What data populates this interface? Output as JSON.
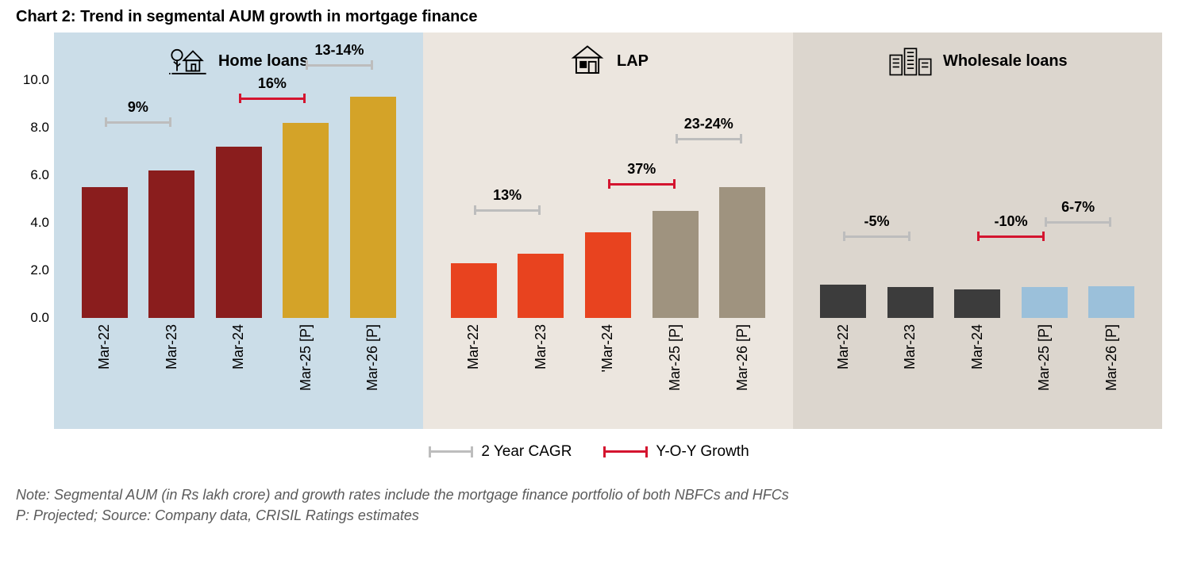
{
  "title": "Chart 2: Trend in segmental AUM growth in mortgage finance",
  "y_axis": {
    "min": 0.0,
    "max": 10.0,
    "step": 2.0,
    "ticks": [
      "0.0",
      "2.0",
      "4.0",
      "6.0",
      "8.0",
      "10.0"
    ]
  },
  "panels": [
    {
      "name": "Home loans",
      "bg": "#cbdde8",
      "icon": "home-tree",
      "categories": [
        "Mar-22",
        "Mar-23",
        "Mar-24",
        "Mar-25 [P]",
        "Mar-26 [P]"
      ],
      "values": [
        5.5,
        6.2,
        7.2,
        8.2,
        9.3
      ],
      "bar_colors": [
        "#8a1d1d",
        "#8a1d1d",
        "#8a1d1d",
        "#d4a328",
        "#d4a328"
      ],
      "brackets": [
        {
          "label": "9%",
          "type": "cagr",
          "from": 0,
          "to": 1,
          "y": 8.2
        },
        {
          "label": "16%",
          "type": "yoy",
          "from": 2,
          "to": 3,
          "y": 9.2
        },
        {
          "label": "13-14%",
          "type": "cagr",
          "from": 3,
          "to": 4,
          "y": 10.6
        }
      ]
    },
    {
      "name": "LAP",
      "bg": "#ece6df",
      "icon": "lap-house",
      "categories": [
        "Mar-22",
        "Mar-23",
        "'Mar-24",
        "Mar-25 [P]",
        "Mar-26 [P]"
      ],
      "values": [
        2.3,
        2.7,
        3.6,
        4.5,
        5.5
      ],
      "bar_colors": [
        "#e8431f",
        "#e8431f",
        "#e8431f",
        "#9f937f",
        "#9f937f"
      ],
      "brackets": [
        {
          "label": "13%",
          "type": "cagr",
          "from": 0,
          "to": 1,
          "y": 4.5
        },
        {
          "label": "37%",
          "type": "yoy",
          "from": 2,
          "to": 3,
          "y": 5.6
        },
        {
          "label": "23-24%",
          "type": "cagr",
          "from": 3,
          "to": 4,
          "y": 7.5
        }
      ]
    },
    {
      "name": "Wholesale loans",
      "bg": "#dcd6ce",
      "icon": "buildings",
      "categories": [
        "Mar-22",
        "Mar-23",
        "Mar-24",
        "Mar-25 [P]",
        "Mar-26 [P]"
      ],
      "values": [
        1.4,
        1.3,
        1.2,
        1.3,
        1.35
      ],
      "bar_colors": [
        "#3c3c3c",
        "#3c3c3c",
        "#3c3c3c",
        "#9bc0da",
        "#9bc0da"
      ],
      "brackets": [
        {
          "label": "-5%",
          "type": "cagr",
          "from": 0,
          "to": 1,
          "y": 3.4
        },
        {
          "label": "-10%",
          "type": "yoy",
          "from": 2,
          "to": 3,
          "y": 3.4
        },
        {
          "label": "6-7%",
          "type": "cagr",
          "from": 3,
          "to": 4,
          "y": 4.0
        }
      ]
    }
  ],
  "bracket_colors": {
    "cagr": "#bdbdbd",
    "yoy": "#d4142f"
  },
  "legend": {
    "cagr": "2 Year CAGR",
    "yoy": "Y-O-Y Growth"
  },
  "notes": [
    "Note: Segmental AUM (in Rs lakh crore) and growth rates include the mortgage finance portfolio of both NBFCs and HFCs",
    "P: Projected; Source: Company data, CRISIL Ratings estimates"
  ],
  "chart_type": "bar",
  "fonts": {
    "title_pt": 20,
    "axis_pt": 17,
    "label_pt": 18,
    "header_pt": 20,
    "notes_pt": 18
  }
}
